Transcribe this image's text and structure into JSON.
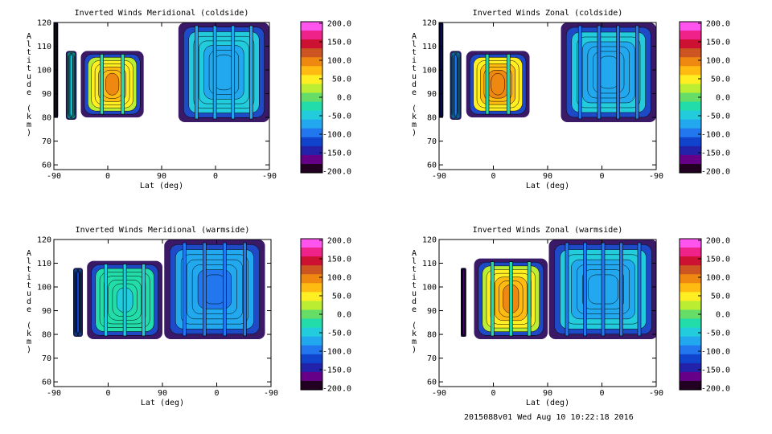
{
  "footer": "2015088v01 Wed Aug 10 10:22:18 2016",
  "colorbar": {
    "labels": [
      "200.0",
      "150.0",
      "100.0",
      "50.0",
      "0.0",
      "-50.0",
      "-100.0",
      "-150.0",
      "-200.0"
    ],
    "range": [
      -200,
      200
    ],
    "colors": [
      "#ff55ee",
      "#ee2288",
      "#cc1133",
      "#cc5522",
      "#ee8811",
      "#ffbb11",
      "#ffee22",
      "#bbee33",
      "#66dd66",
      "#22ddaa",
      "#22ccdd",
      "#22a8ee",
      "#2277ee",
      "#1144cc",
      "#2222aa",
      "#660088",
      "#220022"
    ]
  },
  "chart_data": [
    {
      "id": "meridional-coldside",
      "type": "heatmap",
      "title": "Inverted Winds Meridional (coldside)",
      "xlabel": "Lat (deg)",
      "ylabel": "Altitude (km)",
      "xticks": [
        "-90",
        "0",
        "90",
        "0",
        "-90"
      ],
      "yticks": [
        "60",
        "70",
        "80",
        "90",
        "100",
        "110",
        "120"
      ],
      "ylim": [
        58,
        120
      ],
      "value_range": [
        -200,
        200
      ],
      "blobs": [
        {
          "x0": -90,
          "x1": -83,
          "y0": 80,
          "y1": 120,
          "v": -110
        },
        {
          "x0": -70,
          "x1": -52,
          "y0": 79,
          "y1": 108,
          "v": -30
        },
        {
          "x0": -45,
          "x1": 60,
          "y0": 80,
          "y1": 108,
          "v": 20
        },
        {
          "x0": 118,
          "x1": 270,
          "y0": 78,
          "y1": 120,
          "v": -40
        }
      ]
    },
    {
      "id": "zonal-coldside",
      "type": "heatmap",
      "title": "Inverted Winds Zonal (coldside)",
      "xlabel": "Lat (deg)",
      "ylabel": "Altitude (km)",
      "xticks": [
        "-90",
        "0",
        "90",
        "0",
        "-90"
      ],
      "yticks": [
        "60",
        "70",
        "80",
        "90",
        "100",
        "110",
        "120"
      ],
      "ylim": [
        58,
        120
      ],
      "value_range": [
        -200,
        200
      ],
      "blobs": [
        {
          "x0": -90,
          "x1": -83,
          "y0": 80,
          "y1": 120,
          "v": -110
        },
        {
          "x0": -72,
          "x1": -53,
          "y0": 79,
          "y1": 108,
          "v": -60
        },
        {
          "x0": -45,
          "x1": 60,
          "y0": 80,
          "y1": 108,
          "v": 25
        },
        {
          "x0": 112,
          "x1": 270,
          "y0": 78,
          "y1": 120,
          "v": -45
        }
      ]
    },
    {
      "id": "meridional-warmside",
      "type": "heatmap",
      "title": "Inverted Winds Meridional (warmside)",
      "xlabel": "Lat (deg)",
      "ylabel": "Altitude (km)",
      "xticks": [
        "-90",
        "0",
        "90",
        "0",
        "-90"
      ],
      "yticks": [
        "60",
        "70",
        "80",
        "90",
        "100",
        "110",
        "120"
      ],
      "ylim": [
        58,
        120
      ],
      "value_range": [
        -200,
        200
      ],
      "blobs": [
        {
          "x0": -58,
          "x1": -42,
          "y0": 79,
          "y1": 108,
          "v": -90
        },
        {
          "x0": -35,
          "x1": 90,
          "y0": 78,
          "y1": 111,
          "v": -10
        },
        {
          "x0": 93,
          "x1": 260,
          "y0": 78,
          "y1": 120,
          "v": -60
        }
      ]
    },
    {
      "id": "zonal-warmside",
      "type": "heatmap",
      "title": "Inverted Winds Zonal (warmside)",
      "xlabel": "Lat (deg)",
      "ylabel": "Altitude (km)",
      "xticks": [
        "-90",
        "0",
        "90",
        "0",
        "-90"
      ],
      "yticks": [
        "60",
        "70",
        "80",
        "90",
        "100",
        "110",
        "120"
      ],
      "ylim": [
        58,
        120
      ],
      "value_range": [
        -200,
        200
      ],
      "blobs": [
        {
          "x0": -54,
          "x1": -45,
          "y0": 79,
          "y1": 108,
          "v": -140
        },
        {
          "x0": -32,
          "x1": 90,
          "y0": 78,
          "y1": 112,
          "v": 20
        },
        {
          "x0": 92,
          "x1": 272,
          "y0": 78,
          "y1": 120,
          "v": -45
        }
      ]
    }
  ]
}
